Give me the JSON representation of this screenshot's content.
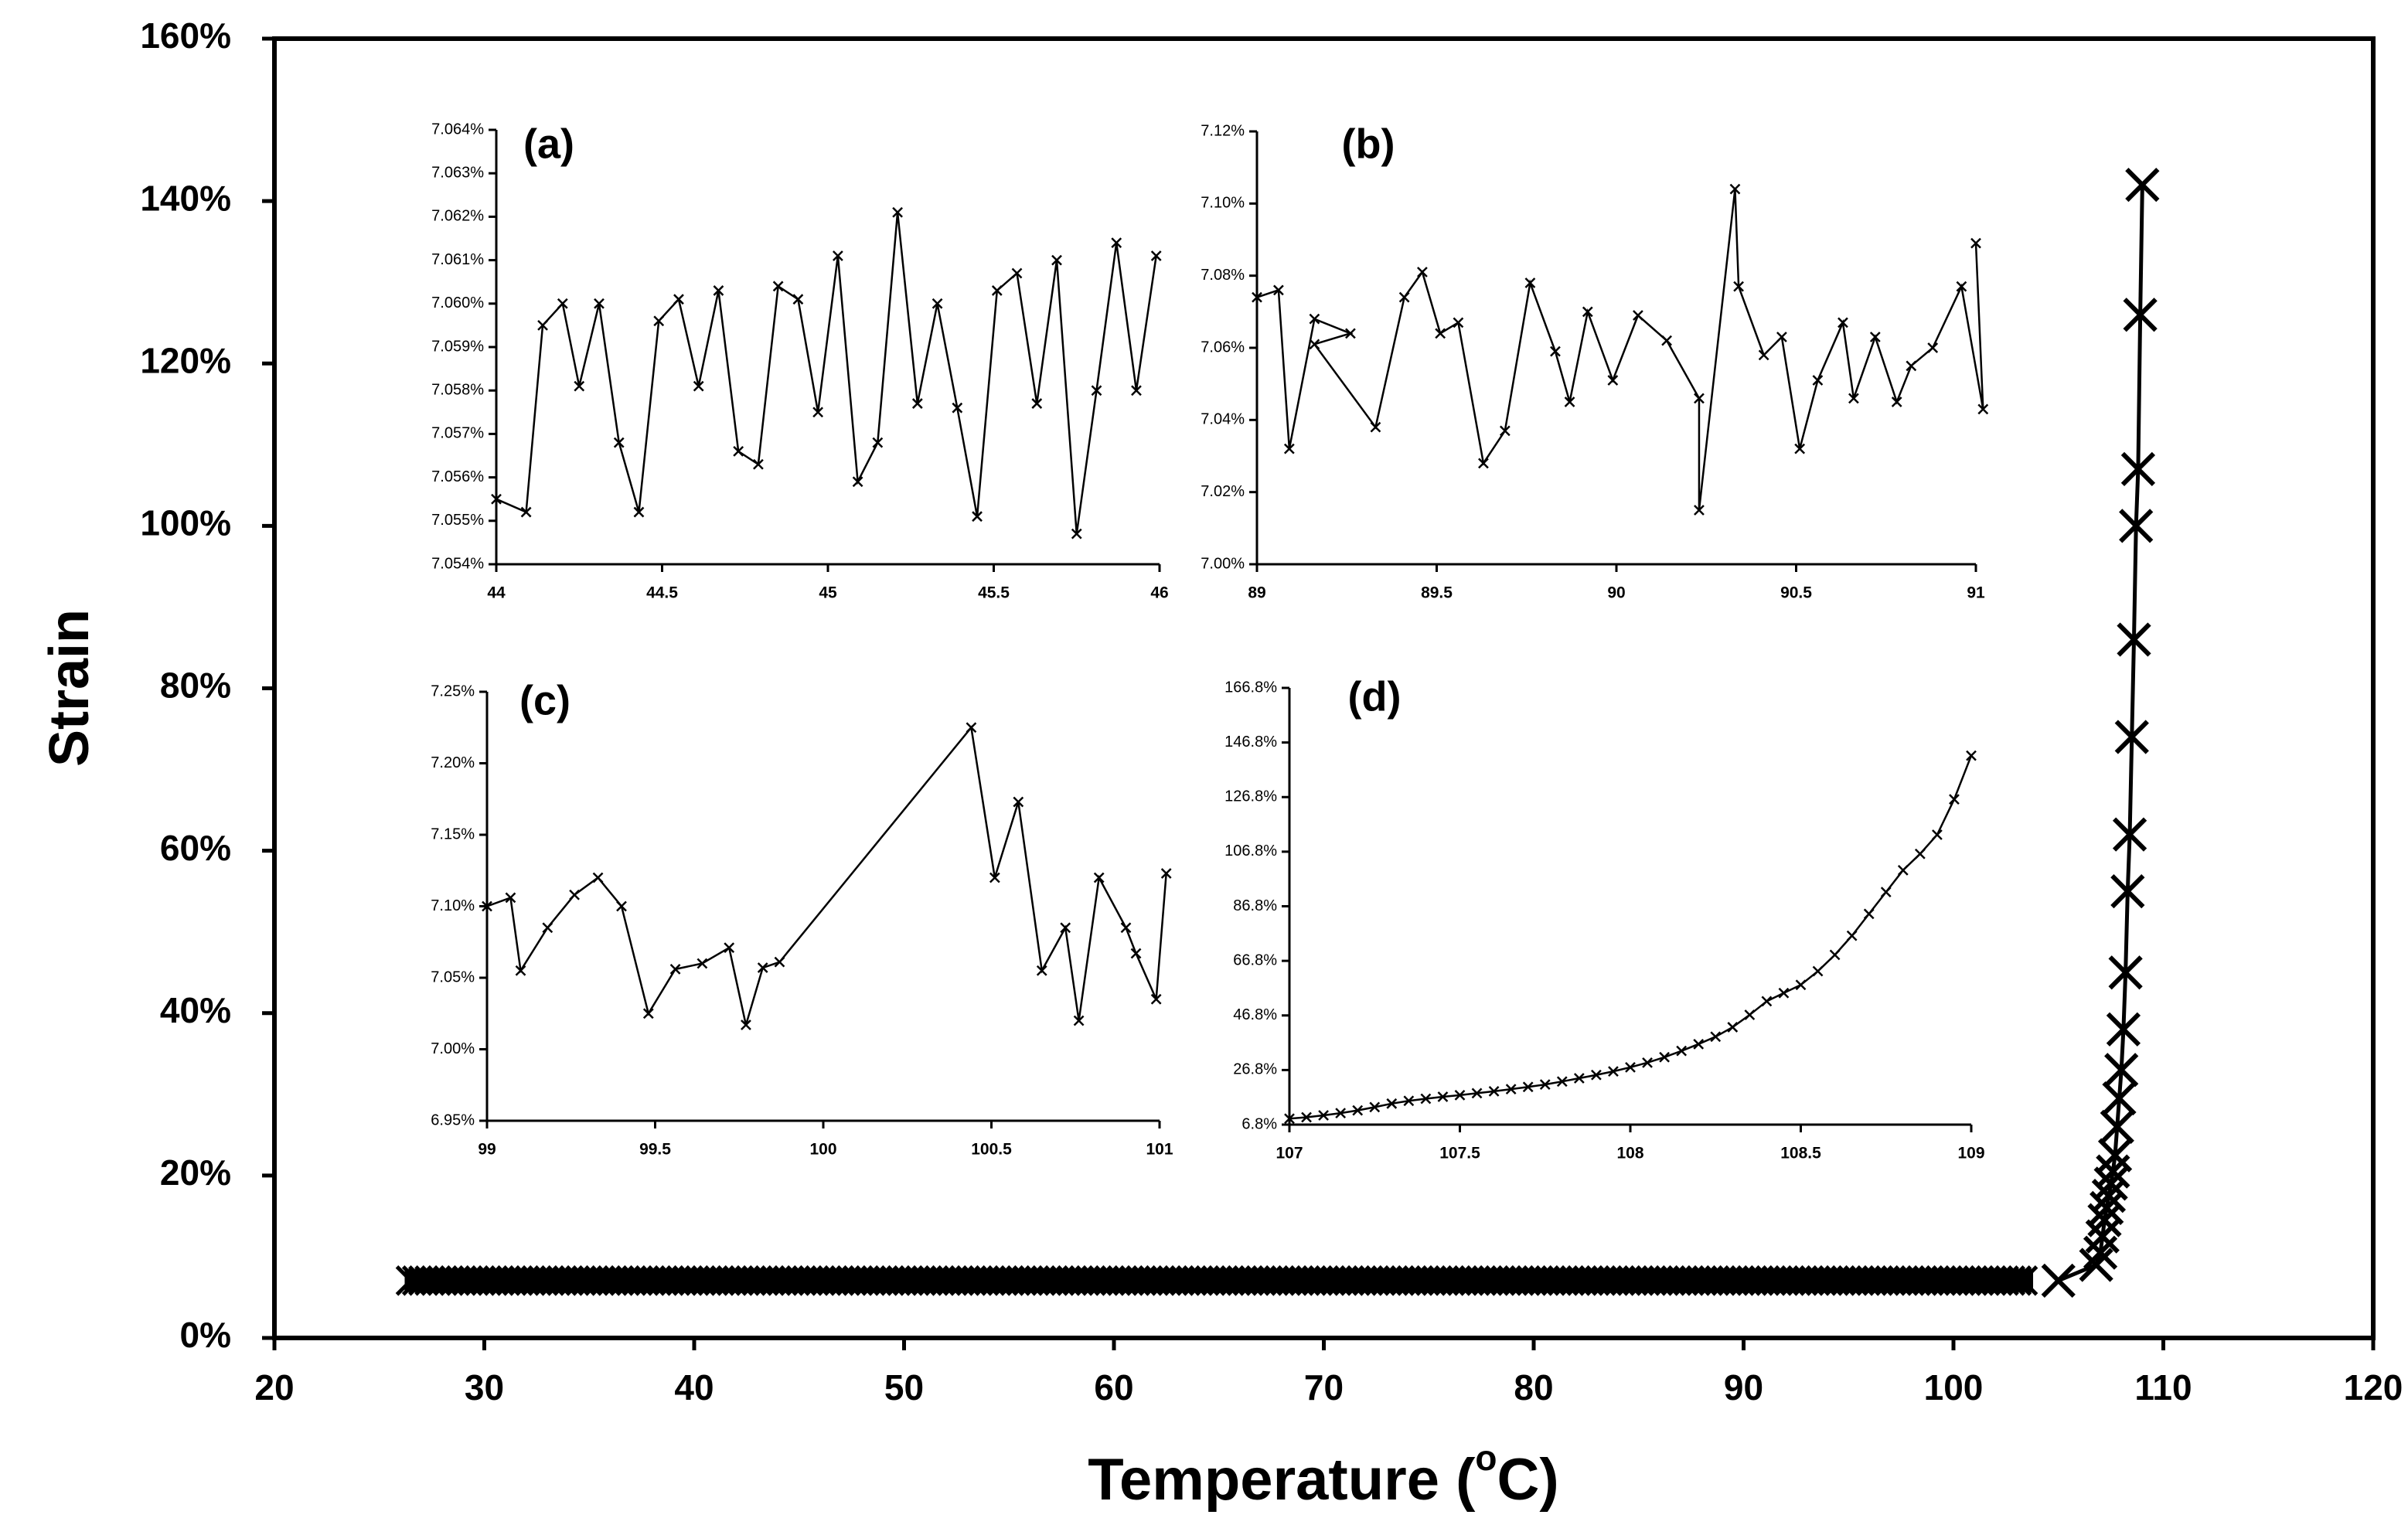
{
  "chart_data": [
    {
      "id": "main",
      "type": "scatter",
      "title": "",
      "xlabel": "Temperature (oC)",
      "xlabel_main": "Temperature (",
      "xlabel_sup": "o",
      "xlabel_tail": "C)",
      "ylabel": "Strain",
      "xlim": [
        20,
        120
      ],
      "ylim": [
        0,
        160
      ],
      "xticks": [
        20,
        30,
        40,
        50,
        60,
        70,
        80,
        90,
        100,
        110,
        120
      ],
      "yticks": [
        0,
        20,
        40,
        60,
        80,
        100,
        120,
        140,
        160
      ],
      "ytick_labels": [
        "0%",
        "20%",
        "40%",
        "60%",
        "80%",
        "100%",
        "120%",
        "140%",
        "160%"
      ],
      "marker": "x",
      "series": [
        {
          "name": "Strain",
          "plateau": {
            "x_start": 26.5,
            "x_end": 103.5,
            "y": 7.06
          },
          "x": [
            105.0,
            106.8,
            107.0,
            107.1,
            107.2,
            107.3,
            107.4,
            107.5,
            107.6,
            107.7,
            107.8,
            107.9,
            108.0,
            108.1,
            108.2,
            108.3,
            108.4,
            108.5,
            108.6,
            108.7,
            108.8,
            108.9,
            109.0
          ],
          "y": [
            7.06,
            9.0,
            10.5,
            12.5,
            14.5,
            16.0,
            17.5,
            19.0,
            20.5,
            22.5,
            26.0,
            29.5,
            33.0,
            38.0,
            45.0,
            55.0,
            62.0,
            74.0,
            86.0,
            100.0,
            107.0,
            126.0,
            142.0
          ]
        }
      ]
    },
    {
      "id": "a",
      "panel_label": "(a)",
      "type": "line",
      "xlim": [
        44,
        46
      ],
      "ylim": [
        7.054,
        7.064
      ],
      "xticks": [
        44,
        44.5,
        45,
        45.5,
        46
      ],
      "xtick_labels": [
        "44",
        "44.5",
        "45",
        "45.5",
        "46"
      ],
      "yticks": [
        7.054,
        7.055,
        7.056,
        7.057,
        7.058,
        7.059,
        7.06,
        7.061,
        7.062,
        7.063,
        7.064
      ],
      "ytick_labels": [
        "7.054%",
        "7.055%",
        "7.056%",
        "7.057%",
        "7.058%",
        "7.059%",
        "7.060%",
        "7.061%",
        "7.062%",
        "7.063%",
        "7.064%"
      ],
      "x": [
        44.0,
        44.09,
        44.14,
        44.2,
        44.25,
        44.31,
        44.37,
        44.43,
        44.49,
        44.55,
        44.61,
        44.67,
        44.73,
        44.79,
        44.85,
        44.91,
        44.97,
        45.03,
        45.09,
        45.15,
        45.21,
        45.27,
        45.33,
        45.39,
        45.45,
        45.51,
        45.57,
        45.63,
        45.69,
        45.75,
        45.81,
        45.87,
        45.93,
        45.99
      ],
      "y": [
        7.0555,
        7.0552,
        7.0595,
        7.06,
        7.0581,
        7.06,
        7.0568,
        7.0552,
        7.0596,
        7.0601,
        7.0581,
        7.0603,
        7.0566,
        7.0563,
        7.0604,
        7.0601,
        7.0575,
        7.0611,
        7.0559,
        7.0568,
        7.0621,
        7.0577,
        7.06,
        7.0576,
        7.0551,
        7.0603,
        7.0607,
        7.0577,
        7.061,
        7.0547,
        7.058,
        7.0614,
        7.058,
        7.0611
      ]
    },
    {
      "id": "b",
      "panel_label": "(b)",
      "type": "line",
      "xlim": [
        89,
        91
      ],
      "ylim": [
        7.0,
        7.12
      ],
      "xticks": [
        89,
        89.5,
        90,
        90.5,
        91
      ],
      "xtick_labels": [
        "89",
        "89.5",
        "90",
        "90.5",
        "91"
      ],
      "yticks": [
        7.0,
        7.02,
        7.04,
        7.06,
        7.08,
        7.1,
        7.12
      ],
      "ytick_labels": [
        "7.00%",
        "7.02%",
        "7.04%",
        "7.06%",
        "7.08%",
        "7.10%",
        "7.12%"
      ],
      "x": [
        89.0,
        89.06,
        89.09,
        89.16,
        89.26,
        89.16,
        89.33,
        89.41,
        89.46,
        89.51,
        89.56,
        89.63,
        89.69,
        89.76,
        89.83,
        89.87,
        89.92,
        89.99,
        90.06,
        90.14,
        90.23,
        90.23,
        90.33,
        90.34,
        90.41,
        90.46,
        90.51,
        90.56,
        90.63,
        90.66,
        90.72,
        90.78,
        90.82,
        90.88,
        90.96,
        91.02,
        91.0
      ],
      "y": [
        7.074,
        7.076,
        7.032,
        7.068,
        7.064,
        7.061,
        7.038,
        7.074,
        7.081,
        7.064,
        7.067,
        7.028,
        7.037,
        7.078,
        7.059,
        7.045,
        7.07,
        7.051,
        7.069,
        7.062,
        7.046,
        7.015,
        7.104,
        7.077,
        7.058,
        7.063,
        7.032,
        7.051,
        7.067,
        7.046,
        7.063,
        7.045,
        7.055,
        7.06,
        7.077,
        7.043,
        7.089
      ]
    },
    {
      "id": "c",
      "panel_label": "(c)",
      "type": "line",
      "xlim": [
        99,
        101
      ],
      "ylim": [
        6.95,
        7.25
      ],
      "xticks": [
        99,
        99.5,
        100,
        100.5,
        101
      ],
      "xtick_labels": [
        "99",
        "99.5",
        "100",
        "100.5",
        "101"
      ],
      "yticks": [
        6.95,
        7.0,
        7.05,
        7.1,
        7.15,
        7.2,
        7.25
      ],
      "ytick_labels": [
        "6.95%",
        "7.00%",
        "7.05%",
        "7.10%",
        "7.15%",
        "7.20%",
        "7.25%"
      ],
      "x": [
        99.0,
        99.07,
        99.1,
        99.18,
        99.26,
        99.33,
        99.4,
        99.48,
        99.56,
        99.64,
        99.72,
        99.77,
        99.82,
        99.87,
        100.44,
        100.51,
        100.58,
        100.65,
        100.72,
        100.76,
        100.82,
        100.9,
        100.93,
        100.99,
        101.02
      ],
      "y": [
        7.1,
        7.106,
        7.055,
        7.085,
        7.108,
        7.12,
        7.1,
        7.025,
        7.056,
        7.06,
        7.071,
        7.017,
        7.057,
        7.061,
        7.225,
        7.12,
        7.173,
        7.055,
        7.085,
        7.02,
        7.12,
        7.085,
        7.067,
        7.035,
        7.123
      ]
    },
    {
      "id": "d",
      "panel_label": "(d)",
      "type": "line",
      "xlim": [
        107,
        109
      ],
      "ylim": [
        6.8,
        166.8
      ],
      "xticks": [
        107,
        107.5,
        108,
        108.5,
        109
      ],
      "xtick_labels": [
        "107",
        "107.5",
        "108",
        "108.5",
        "109"
      ],
      "yticks": [
        6.8,
        26.8,
        46.8,
        66.8,
        86.8,
        106.8,
        126.8,
        146.8,
        166.8
      ],
      "ytick_labels": [
        "6.8%",
        "26.8%",
        "46.8%",
        "66.8%",
        "86.8%",
        "106.8%",
        "126.8%",
        "146.8%",
        "166.8%"
      ],
      "x": [
        107.0,
        107.05,
        107.1,
        107.15,
        107.2,
        107.25,
        107.3,
        107.35,
        107.4,
        107.45,
        107.5,
        107.55,
        107.6,
        107.65,
        107.7,
        107.75,
        107.8,
        107.85,
        107.9,
        107.95,
        108.0,
        108.05,
        108.1,
        108.15,
        108.2,
        108.25,
        108.3,
        108.35,
        108.4,
        108.45,
        108.5,
        108.55,
        108.6,
        108.65,
        108.7,
        108.75,
        108.8,
        108.85,
        108.9,
        108.95,
        109.0
      ],
      "y": [
        9.0,
        9.5,
        10.2,
        11.0,
        12.0,
        13.2,
        14.5,
        15.5,
        16.3,
        17.0,
        17.6,
        18.3,
        19.0,
        19.8,
        20.6,
        21.5,
        22.6,
        23.8,
        25.0,
        26.3,
        27.8,
        29.5,
        31.5,
        33.8,
        36.3,
        39.0,
        42.5,
        47.0,
        52.0,
        55.0,
        58.0,
        63.0,
        69.0,
        76.0,
        84.0,
        92.0,
        100.0,
        106.0,
        113.0,
        126.0,
        142.0
      ]
    }
  ]
}
